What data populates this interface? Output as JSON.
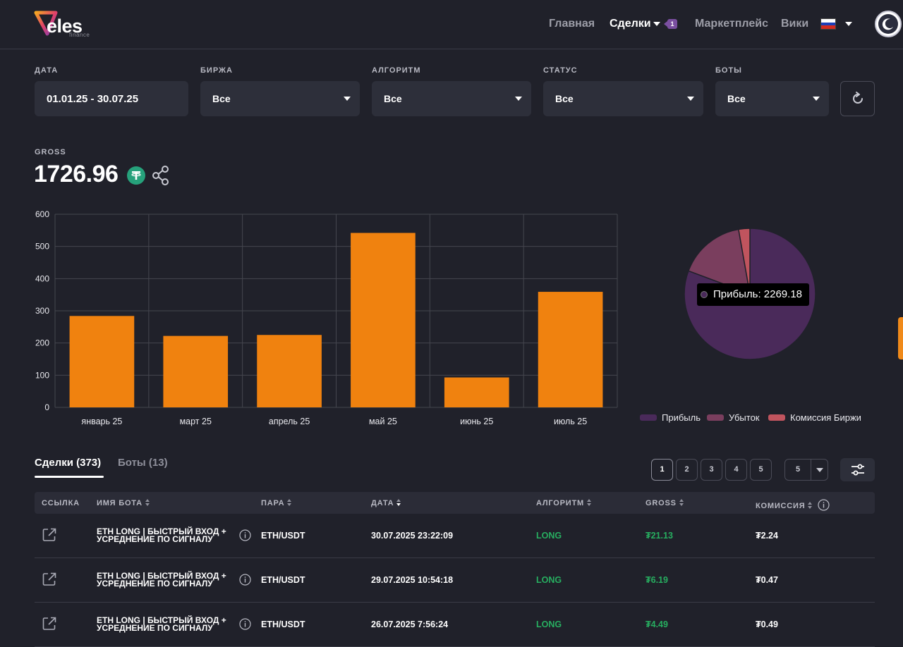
{
  "header": {
    "logo_text": "eles",
    "logo_sub": "finance",
    "nav": {
      "home": "Главная",
      "deals": "Сделки",
      "deals_badge": "1",
      "marketplace": "Маркетплейс",
      "wiki": "Вики"
    },
    "language_flag": "ru-flag-icon",
    "theme_icon": "moon-icon"
  },
  "filters": {
    "date": {
      "label": "ДАТА",
      "value": "01.01.25 - 30.07.25"
    },
    "exchange": {
      "label": "БИРЖА",
      "value": "Все"
    },
    "algorithm": {
      "label": "АЛГОРИТМ",
      "value": "Все"
    },
    "status": {
      "label": "СТАТУС",
      "value": "Все"
    },
    "bots": {
      "label": "БОТЫ",
      "value": "Все"
    },
    "refresh_icon": "refresh-icon"
  },
  "gross": {
    "label": "GROSS",
    "value": "1726.96",
    "currency_icon": "tether-icon",
    "share_icon": "share-icon"
  },
  "chart_data": [
    {
      "type": "bar",
      "categories": [
        "январь 25",
        "март 25",
        "апрель 25",
        "май 25",
        "июнь 25",
        "июль 25"
      ],
      "values": [
        284,
        222,
        225,
        542,
        93,
        359
      ],
      "ylim": [
        0,
        600
      ],
      "yticks": [
        0,
        100,
        200,
        300,
        400,
        500,
        600
      ],
      "grid": true,
      "color": "#f0820f"
    },
    {
      "type": "pie",
      "labels": [
        "Прибыль",
        "Убыток",
        "Комиссия Биржи"
      ],
      "values": [
        2269.18,
        464,
        78
      ],
      "colors": [
        "#4a2a5a",
        "#7a3e5e",
        "#c0545e"
      ],
      "legend": "bottom",
      "tooltip": "Прибыль: 2269.18"
    }
  ],
  "tabs": {
    "deals": "Сделки (373)",
    "bots": "Боты (13)"
  },
  "pagination": {
    "pages": [
      "1",
      "2",
      "3",
      "4",
      "5"
    ],
    "current": "1",
    "per_page": "5"
  },
  "table": {
    "headers": {
      "link": "ССЫЛКА",
      "bot_name": "ИМЯ БОТА",
      "pair": "ПАРА",
      "date": "ДАТА",
      "algorithm": "АЛГОРИТМ",
      "gross": "GROSS",
      "commission": "КОМИССИЯ"
    },
    "rows": [
      {
        "bot_name": "ETH LONG | БЫСТРЫЙ ВХОД + УСРЕДНЕНИЕ ПО СИГНАЛУ",
        "pair": "ETH/USDT",
        "date": "30.07.2025 23:22:09",
        "algorithm": "LONG",
        "gross": "₮21.13",
        "commission": "₮2.24"
      },
      {
        "bot_name": "ETH LONG | БЫСТРЫЙ ВХОД + УСРЕДНЕНИЕ ПО СИГНАЛУ",
        "pair": "ETH/USDT",
        "date": "29.07.2025 10:54:18",
        "algorithm": "LONG",
        "gross": "₮6.19",
        "commission": "₮0.47"
      },
      {
        "bot_name": "ETH LONG | БЫСТРЫЙ ВХОД + УСРЕДНЕНИЕ ПО СИГНАЛУ",
        "pair": "ETH/USDT",
        "date": "26.07.2025 7:56:24",
        "algorithm": "LONG",
        "gross": "₮4.49",
        "commission": "₮0.49"
      }
    ]
  }
}
